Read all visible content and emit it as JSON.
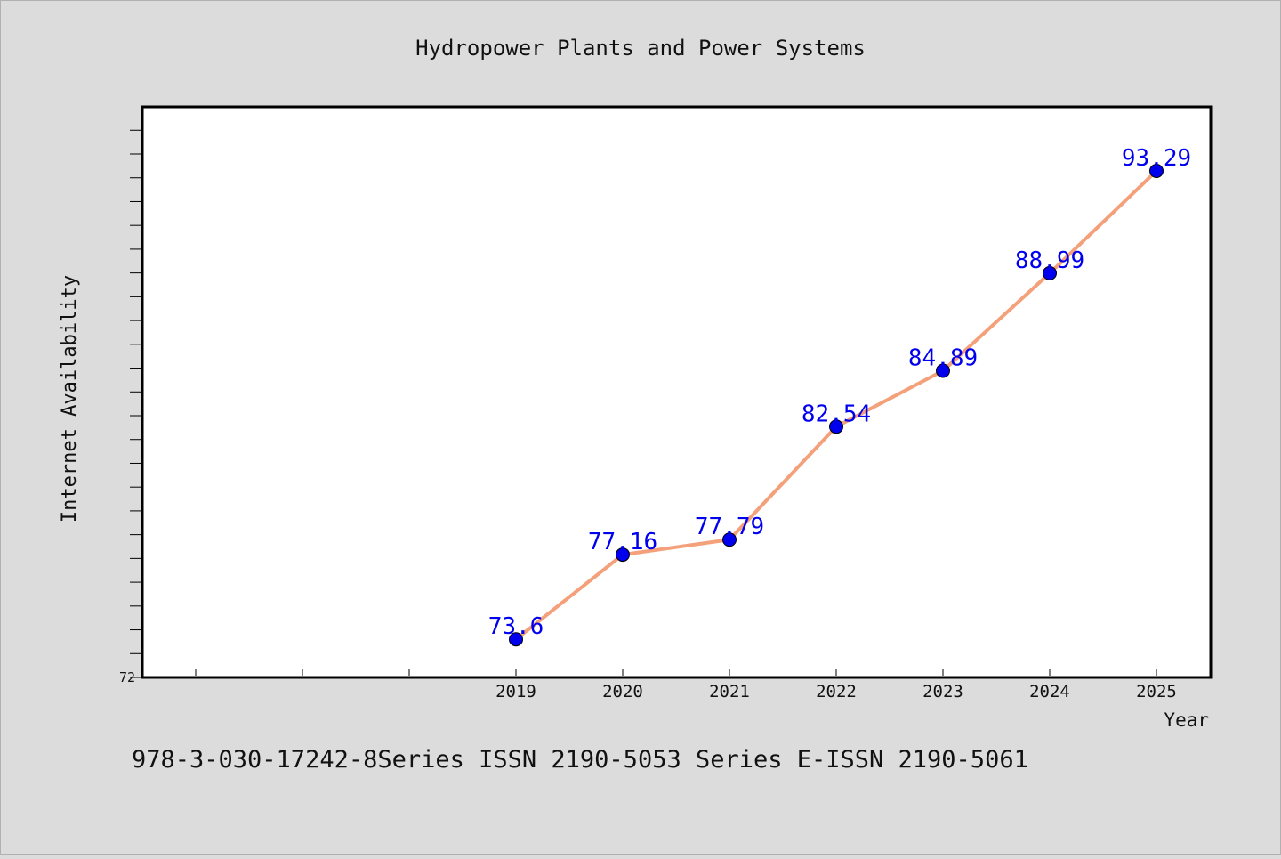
{
  "chart_data": {
    "type": "line",
    "title": "Hydropower Plants and Power Systems",
    "xlabel": "Year",
    "ylabel": "Internet Availability",
    "categories": [
      "2019",
      "2020",
      "2021",
      "2022",
      "2023",
      "2024",
      "2025"
    ],
    "series": [
      {
        "values": [
          73.6,
          77.16,
          77.79,
          82.54,
          84.89,
          88.99,
          93.29
        ],
        "value_labels": [
          "73.6",
          "77.16",
          "77.79",
          "82.54",
          "84.89",
          "88.99",
          "93.29"
        ],
        "line_color": "#f4a07a",
        "marker_color": "#0000ee"
      }
    ],
    "ylim": [
      72,
      96
    ],
    "y_tick_labels": [
      {
        "value": 72,
        "label": "72"
      }
    ],
    "grid": false,
    "legend": "none",
    "label_color": "#0000ee"
  },
  "footer_text": "978-3-030-17242-8Series ISSN 2190-5053 Series E-ISSN 2190-5061"
}
